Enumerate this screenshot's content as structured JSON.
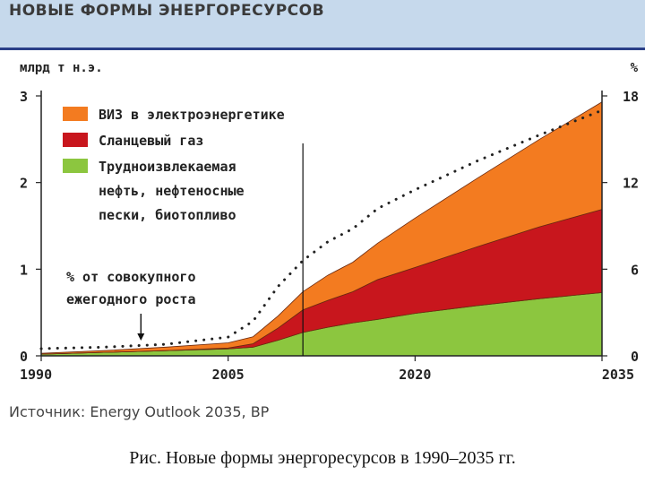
{
  "header": {
    "title": "НОВЫЕ ФОРМЫ ЭНЕРГОРЕСУРСОВ"
  },
  "source": "Источник: Energy Outlook 2035, BP",
  "caption": "Рис. Новые формы энергоресурсов в 1990–2035 гг.",
  "colors": {
    "renewables": "#f37b20",
    "shale_gas": "#c8161d",
    "oil": "#8cc63f",
    "dotted": "#222222",
    "axis": "#222222"
  },
  "chart_data": {
    "type": "area",
    "stacked": true,
    "ylabel_left": "млрд т н.э.",
    "ylabel_right": "%",
    "x_ticks": [
      1990,
      2005,
      2020,
      2035
    ],
    "xlim": [
      1990,
      2035
    ],
    "ylim_left": [
      0,
      3
    ],
    "ylim_right": [
      0,
      18
    ],
    "y_ticks_left": [
      0,
      1,
      2,
      3
    ],
    "y_ticks_right": [
      0,
      6,
      12,
      18
    ],
    "vertical_marker_x": 2011,
    "legend": [
      {
        "name": "ВИЗ в электроэнергетике",
        "color": "#f37b20"
      },
      {
        "name": "Сланцевый газ",
        "color": "#c8161d"
      },
      {
        "name_lines": [
          "Трудноизвлекаемая",
          "нефть, нефтеносные",
          "пески, биотопливо"
        ],
        "color": "#8cc63f"
      }
    ],
    "annotation": {
      "lines": [
        "% от совокупного",
        "ежегодного роста"
      ],
      "arrow_x": 1998
    },
    "x": [
      1990,
      1995,
      2000,
      2005,
      2007,
      2009,
      2011,
      2013,
      2015,
      2017,
      2020,
      2025,
      2030,
      2035
    ],
    "series": [
      {
        "name": "Трудноизвлекаемая нефть, нефтеносные пески, биотопливо",
        "values": [
          0.02,
          0.04,
          0.06,
          0.08,
          0.1,
          0.18,
          0.27,
          0.33,
          0.38,
          0.42,
          0.49,
          0.58,
          0.66,
          0.73
        ]
      },
      {
        "name": "Сланцевый газ",
        "values": [
          0.0,
          0.0,
          0.0,
          0.01,
          0.04,
          0.14,
          0.26,
          0.31,
          0.36,
          0.46,
          0.53,
          0.68,
          0.83,
          0.96
        ]
      },
      {
        "name": "ВИЗ в электроэнергетике",
        "values": [
          0.01,
          0.02,
          0.04,
          0.06,
          0.08,
          0.14,
          0.21,
          0.29,
          0.34,
          0.42,
          0.57,
          0.79,
          1.01,
          1.24
        ]
      }
    ],
    "growth_share_percent": {
      "x": [
        1990,
        1995,
        2000,
        2005,
        2007,
        2009,
        2011,
        2013,
        2015,
        2017,
        2020,
        2025,
        2030,
        2035
      ],
      "values": [
        0.5,
        0.6,
        0.8,
        1.3,
        2.4,
        4.8,
        6.6,
        7.9,
        8.8,
        10.2,
        11.5,
        13.5,
        15.3,
        17.0
      ]
    }
  }
}
